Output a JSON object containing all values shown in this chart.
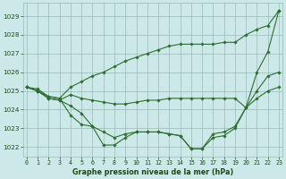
{
  "series": [
    {
      "x": [
        0,
        1,
        2,
        3,
        4,
        5,
        6,
        7,
        8,
        9,
        10,
        11,
        12,
        13,
        14,
        15,
        16,
        17,
        18,
        19,
        20,
        21,
        22,
        23
      ],
      "y": [
        1025.2,
        1025.0,
        1024.6,
        1024.5,
        1024.2,
        1023.8,
        1023.1,
        1022.1,
        1022.1,
        1022.5,
        1022.8,
        1022.8,
        1022.8,
        1022.7,
        1022.6,
        1021.9,
        1021.9,
        1022.7,
        1022.8,
        1023.1,
        1024.1,
        1026.0,
        1027.1,
        1029.3
      ],
      "color": "#2d6e2d",
      "linewidth": 0.8,
      "marker": "D",
      "markersize": 1.8
    },
    {
      "x": [
        0,
        1,
        2,
        3,
        4,
        5,
        6,
        7,
        8,
        9,
        10,
        11,
        12,
        13,
        14,
        15,
        16,
        17,
        18,
        19,
        20,
        21,
        22,
        23
      ],
      "y": [
        1025.2,
        1025.0,
        1024.6,
        1024.5,
        1024.8,
        1024.6,
        1024.5,
        1024.4,
        1024.3,
        1024.3,
        1024.4,
        1024.5,
        1024.5,
        1024.6,
        1024.6,
        1024.6,
        1024.6,
        1024.6,
        1024.6,
        1024.6,
        1024.1,
        1025.0,
        1025.8,
        1026.0
      ],
      "color": "#2d6e2d",
      "linewidth": 0.8,
      "marker": "D",
      "markersize": 1.8
    },
    {
      "x": [
        0,
        1,
        2,
        3,
        4,
        5,
        6,
        7,
        8,
        9,
        10,
        11,
        12,
        13,
        14,
        15,
        16,
        17,
        18,
        19,
        20,
        21,
        22,
        23
      ],
      "y": [
        1025.2,
        1025.1,
        1024.7,
        1024.6,
        1025.2,
        1025.5,
        1025.8,
        1026.0,
        1026.3,
        1026.6,
        1026.8,
        1027.0,
        1027.2,
        1027.4,
        1027.5,
        1027.5,
        1027.5,
        1027.5,
        1027.6,
        1027.6,
        1028.0,
        1028.3,
        1028.5,
        1029.3
      ],
      "color": "#2d6e2d",
      "linewidth": 0.8,
      "marker": "D",
      "markersize": 1.8
    },
    {
      "x": [
        0,
        1,
        2,
        3,
        4,
        5,
        6,
        7,
        8,
        9,
        10,
        11,
        12,
        13,
        14,
        15,
        16,
        17,
        18,
        19,
        20,
        21,
        22,
        23
      ],
      "y": [
        1025.2,
        1025.0,
        1024.7,
        1024.6,
        1023.7,
        1023.2,
        1023.1,
        1022.8,
        1022.5,
        1022.7,
        1022.8,
        1022.8,
        1022.8,
        1022.7,
        1022.6,
        1021.9,
        1021.9,
        1022.5,
        1022.6,
        1023.0,
        1024.1,
        1024.6,
        1025.0,
        1025.2
      ],
      "color": "#2d6e2d",
      "linewidth": 0.8,
      "marker": "D",
      "markersize": 1.8
    }
  ],
  "xlim": [
    -0.3,
    23.3
  ],
  "ylim": [
    1021.5,
    1029.7
  ],
  "yticks": [
    1022,
    1023,
    1024,
    1025,
    1026,
    1027,
    1028,
    1029
  ],
  "xticks": [
    0,
    1,
    2,
    3,
    4,
    5,
    6,
    7,
    8,
    9,
    10,
    11,
    12,
    13,
    14,
    15,
    16,
    17,
    18,
    19,
    20,
    21,
    22,
    23
  ],
  "xlabel": "Graphe pression niveau de la mer (hPa)",
  "bg_color": "#cce8e8",
  "grid_color": "#99bbbb",
  "line_color": "#2d6e2d",
  "tick_color": "#1a4a1a",
  "label_color": "#1a4a1a"
}
